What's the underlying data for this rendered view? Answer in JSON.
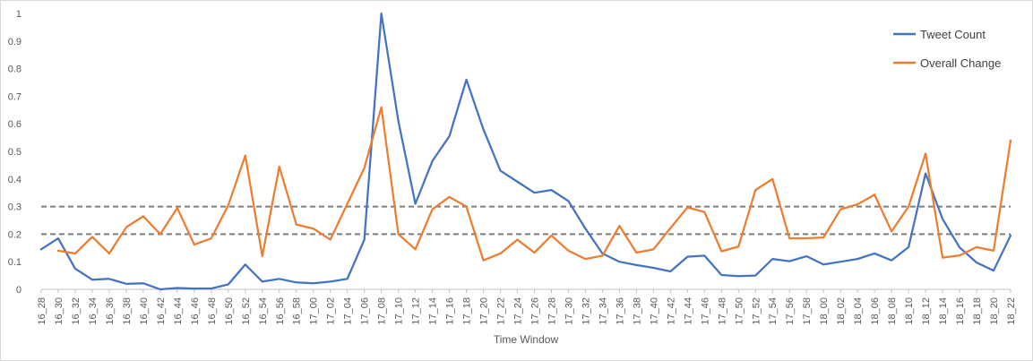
{
  "chart_data": {
    "type": "line",
    "title": "",
    "xlabel": "Time Window",
    "ylabel": "",
    "ylim": [
      0,
      1
    ],
    "yticks": [
      "0",
      "0.1",
      "0.2",
      "0.3",
      "0.4",
      "0.5",
      "0.6",
      "0.7",
      "0.8",
      "0.9",
      "1"
    ],
    "ytick_values": [
      0,
      0.1,
      0.2,
      0.3,
      0.4,
      0.5,
      0.6,
      0.7,
      0.8,
      0.9,
      1
    ],
    "grid": false,
    "legend_position": "top-right",
    "reference_lines": [
      0.2,
      0.3
    ],
    "categories": [
      "16_28",
      "16_30",
      "16_32",
      "16_34",
      "16_36",
      "16_38",
      "16_40",
      "16_42",
      "16_44",
      "16_46",
      "16_48",
      "16_50",
      "16_52",
      "16_54",
      "16_56",
      "16_58",
      "17_00",
      "17_02",
      "17_04",
      "17_06",
      "17_08",
      "17_10",
      "17_12",
      "17_14",
      "17_16",
      "17_18",
      "17_20",
      "17_22",
      "17_24",
      "17_26",
      "17_28",
      "17_30",
      "17_32",
      "17_34",
      "17_36",
      "17_38",
      "17_40",
      "17_42",
      "17_44",
      "17_46",
      "17_48",
      "17_50",
      "17_52",
      "17_54",
      "17_56",
      "17_58",
      "18_00",
      "18_02",
      "18_04",
      "18_06",
      "18_08",
      "18_10",
      "18_12",
      "18_14",
      "18_16",
      "18_18",
      "18_20",
      "18_22"
    ],
    "series": [
      {
        "name": "Tweet Count",
        "color": "#4472C4",
        "values": [
          0.145,
          0.185,
          0.075,
          0.035,
          0.038,
          0.02,
          0.022,
          0.0,
          0.005,
          0.003,
          0.003,
          0.018,
          0.09,
          0.028,
          0.038,
          0.025,
          0.022,
          0.028,
          0.038,
          0.18,
          1.0,
          0.61,
          0.31,
          0.465,
          0.555,
          0.76,
          0.58,
          0.43,
          0.39,
          0.35,
          0.36,
          0.32,
          0.22,
          0.13,
          0.1,
          0.088,
          0.078,
          0.065,
          0.118,
          0.122,
          0.052,
          0.048,
          0.05,
          0.11,
          0.102,
          0.12,
          0.09,
          0.1,
          0.11,
          0.13,
          0.105,
          0.153,
          0.42,
          0.255,
          0.152,
          0.097,
          0.068,
          0.195
        ]
      },
      {
        "name": "Overall Change",
        "color": "#ED7D31",
        "values": [
          null,
          0.14,
          0.13,
          0.19,
          0.13,
          0.225,
          0.265,
          0.2,
          0.295,
          0.162,
          0.185,
          0.305,
          0.485,
          0.12,
          0.445,
          0.235,
          0.22,
          0.18,
          0.31,
          0.44,
          0.66,
          0.2,
          0.145,
          0.29,
          0.335,
          0.3,
          0.105,
          0.13,
          0.18,
          0.133,
          0.195,
          0.14,
          0.11,
          0.122,
          0.23,
          0.133,
          0.145,
          0.222,
          0.297,
          0.28,
          0.138,
          0.155,
          0.36,
          0.4,
          0.185,
          0.185,
          0.188,
          0.29,
          0.308,
          0.343,
          0.21,
          0.3,
          0.492,
          0.115,
          0.123,
          0.153,
          0.14,
          0.54
        ]
      }
    ]
  }
}
